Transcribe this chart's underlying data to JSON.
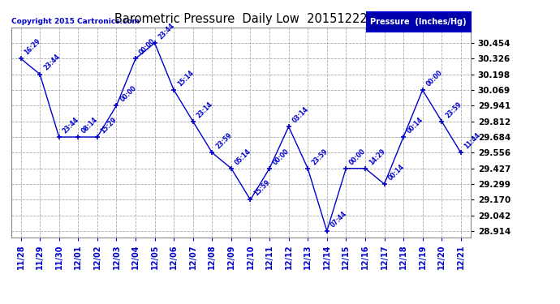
{
  "title": "Barometric Pressure  Daily Low  20151222",
  "ylabel": "Pressure  (Inches/Hg)",
  "copyright": "Copyright 2015 Cartronics.com",
  "line_color": "#0000CC",
  "bg_color": "#ffffff",
  "grid_color": "#aaaaaa",
  "dates": [
    "11/28",
    "11/29",
    "11/30",
    "12/01",
    "12/02",
    "12/03",
    "12/04",
    "12/05",
    "12/06",
    "12/07",
    "12/08",
    "12/09",
    "12/10",
    "12/11",
    "12/12",
    "12/13",
    "12/14",
    "12/15",
    "12/16",
    "12/17",
    "12/18",
    "12/19",
    "12/20",
    "12/21"
  ],
  "values": [
    30.326,
    30.198,
    29.684,
    29.684,
    29.684,
    29.941,
    30.326,
    30.454,
    30.069,
    29.812,
    29.556,
    29.427,
    29.17,
    29.427,
    29.769,
    29.427,
    28.914,
    29.427,
    29.427,
    29.299,
    29.684,
    30.069,
    29.812,
    29.556
  ],
  "time_labels": [
    "16:29",
    "23:44",
    "23:44",
    "08:14",
    "15:29",
    "00:00",
    "00:00",
    "23:44",
    "15:14",
    "23:14",
    "23:59",
    "05:14",
    "15:59",
    "00:00",
    "03:14",
    "23:59",
    "07:44",
    "00:00",
    "14:29",
    "00:14",
    "00:14",
    "00:00",
    "23:59",
    "11:44"
  ],
  "yticks": [
    30.454,
    30.326,
    30.198,
    30.069,
    29.941,
    29.812,
    29.684,
    29.556,
    29.427,
    29.299,
    29.17,
    29.042,
    28.914
  ],
  "ylim_min": 28.864,
  "ylim_max": 30.582,
  "legend_color": "#0000AA",
  "legend_text_color": "#ffffff"
}
